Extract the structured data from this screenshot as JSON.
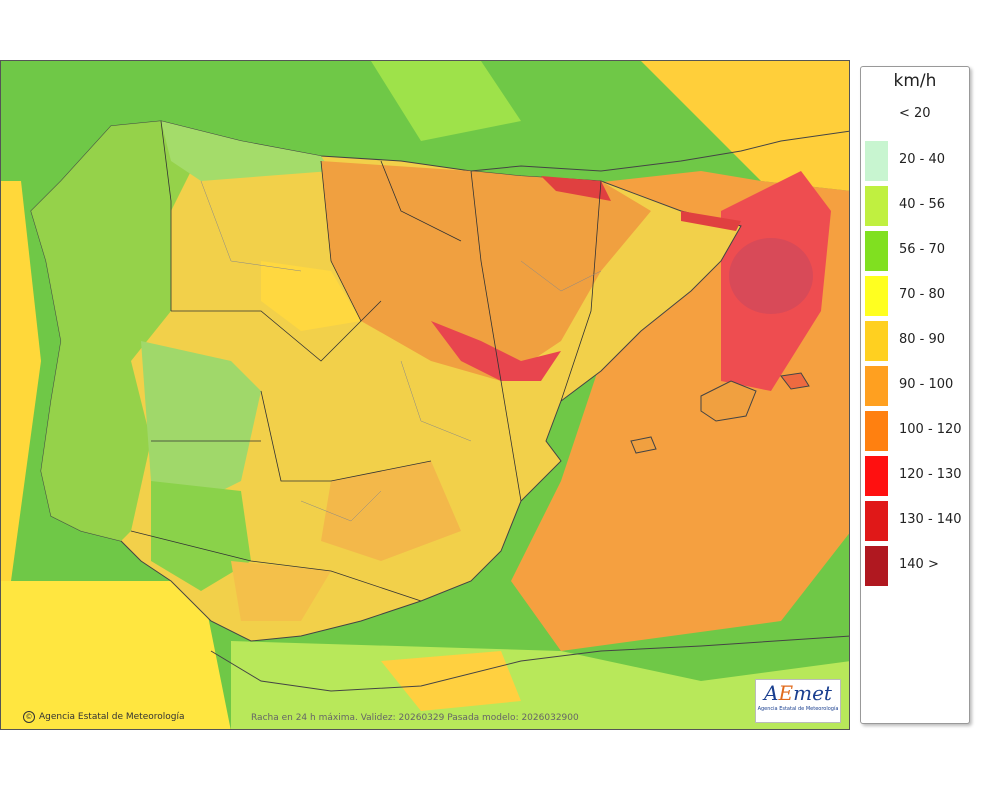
{
  "map": {
    "credit": "Agencia Estatal de Meteorología",
    "caption": "Racha en 24 h máxima. Validez: 20260329 Pasada modelo: 2026032900",
    "logo_text": "AEmet",
    "logo_subtext": "Agencia Estatal de Meteorología"
  },
  "legend": {
    "unit": "km/h",
    "items": [
      {
        "label": "< 20",
        "color": "#ffffff"
      },
      {
        "label": "20 - 40",
        "color": "#c8f5d0"
      },
      {
        "label": "40 - 56",
        "color": "#c0f040"
      },
      {
        "label": "56 - 70",
        "color": "#80e020"
      },
      {
        "label": "70 - 80",
        "color": "#ffff20"
      },
      {
        "label": "80 - 90",
        "color": "#ffd020"
      },
      {
        "label": "90 - 100",
        "color": "#ffa020"
      },
      {
        "label": "100 - 120",
        "color": "#ff8010"
      },
      {
        "label": "120 - 130",
        "color": "#ff1010"
      },
      {
        "label": "130 - 140",
        "color": "#e01818"
      },
      {
        "label": "140 >",
        "color": "#b01820"
      }
    ]
  }
}
